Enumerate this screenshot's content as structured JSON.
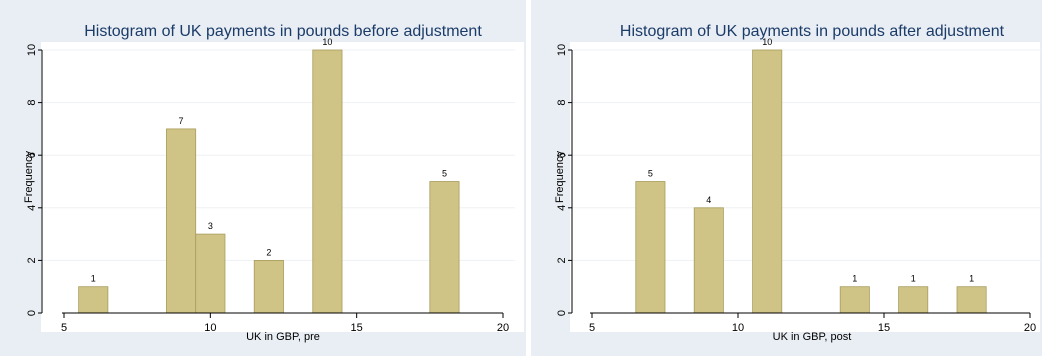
{
  "chart_data": [
    {
      "type": "bar",
      "title": "Histogram of UK payments in pounds before adjustment",
      "xlabel": "UK in GBP, pre",
      "ylabel": "Frequency",
      "xlim": [
        5,
        20
      ],
      "ylim": [
        0,
        10
      ],
      "xticks": [
        "5",
        "10",
        "15",
        "20"
      ],
      "yticks": [
        "0",
        "2",
        "4",
        "6",
        "8",
        "10"
      ],
      "bar_width": 1,
      "bars": [
        {
          "x": 6,
          "value": 1
        },
        {
          "x": 9,
          "value": 7
        },
        {
          "x": 10,
          "value": 3
        },
        {
          "x": 12,
          "value": 2
        },
        {
          "x": 14,
          "value": 10
        },
        {
          "x": 18,
          "value": 5
        }
      ],
      "colors": {
        "bar": "#cfc486",
        "bar_edge": "#a89d5c",
        "title": "#1b3b68",
        "background": "#e9eef4"
      }
    },
    {
      "type": "bar",
      "title": "Histogram of UK payments in pounds after adjustment",
      "xlabel": "UK in GBP, post",
      "ylabel": "Frequency",
      "xlim": [
        5,
        20
      ],
      "ylim": [
        0,
        10
      ],
      "xticks": [
        "5",
        "10",
        "15",
        "20"
      ],
      "yticks": [
        "0",
        "2",
        "4",
        "6",
        "8",
        "10"
      ],
      "bar_width": 1,
      "bars": [
        {
          "x": 7,
          "value": 5
        },
        {
          "x": 9,
          "value": 4
        },
        {
          "x": 11,
          "value": 10
        },
        {
          "x": 14,
          "value": 1
        },
        {
          "x": 16,
          "value": 1
        },
        {
          "x": 18,
          "value": 1
        }
      ],
      "colors": {
        "bar": "#cfc486",
        "bar_edge": "#a89d5c",
        "title": "#1b3b68",
        "background": "#e9eef4"
      }
    }
  ]
}
